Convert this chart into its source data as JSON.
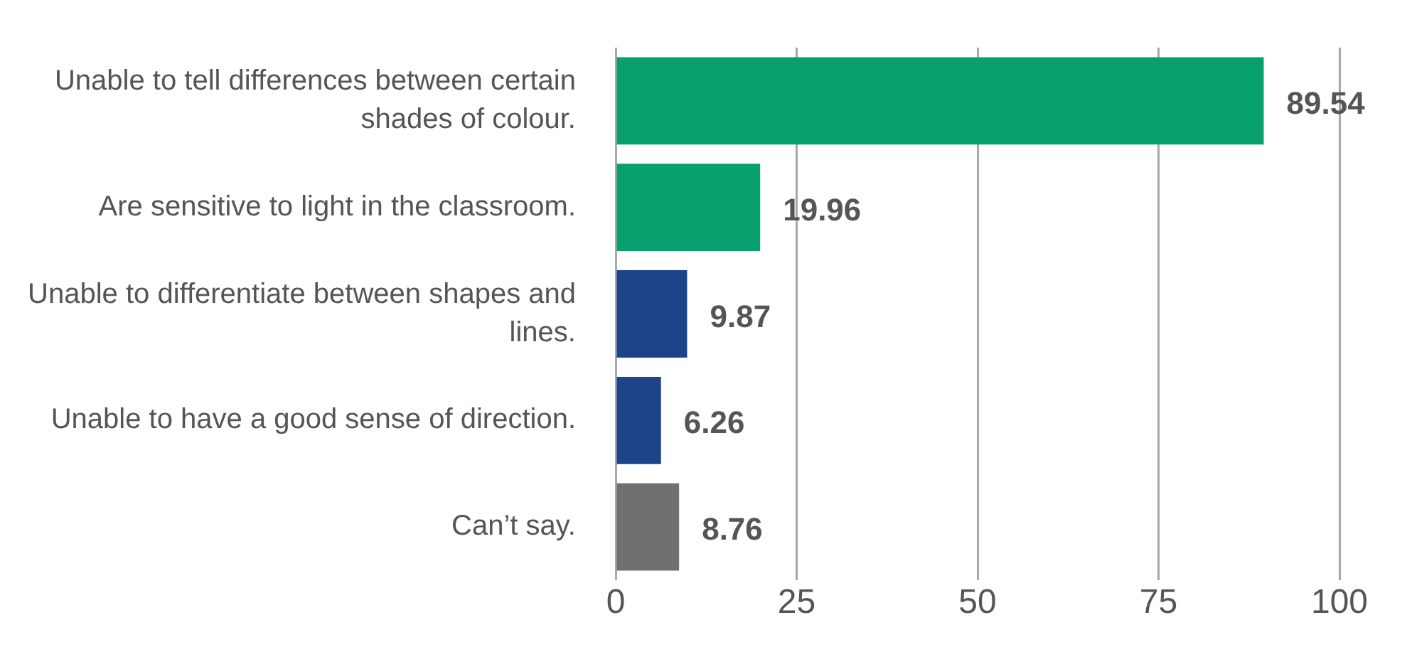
{
  "chart_data": {
    "type": "bar",
    "orientation": "horizontal",
    "categories": [
      "Unable to tell differences between certain shades of colour.",
      "Are sensitive to light in the classroom.",
      "Unable to differentiate between shapes and lines.",
      "Unable to have a good sense of direction.",
      "Can’t say."
    ],
    "values": [
      89.54,
      19.96,
      9.87,
      6.26,
      8.76
    ],
    "colors": [
      "#08a06e",
      "#08a06e",
      "#1d4389",
      "#1d4389",
      "#707070"
    ],
    "xlim": [
      0,
      100
    ],
    "xticks": [
      0,
      25,
      50,
      75,
      100
    ],
    "grid": "x",
    "legend": false,
    "data_labels": true
  }
}
